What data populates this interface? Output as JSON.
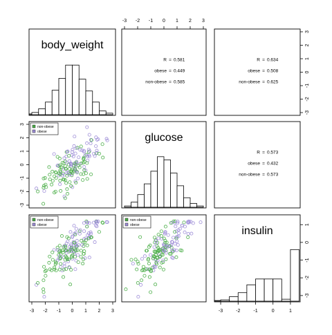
{
  "chart_data": {
    "type": "scatter",
    "variables": [
      "body_weight",
      "glucose",
      "insulin"
    ],
    "groups": [
      {
        "name": "non-obese",
        "color": "#4daf4a"
      },
      {
        "name": "obese",
        "color": "#9f8fd8"
      }
    ],
    "axis_ticks": {
      "body_weight": [
        "-3",
        "-2",
        "-1",
        "0",
        "1",
        "2",
        "3"
      ],
      "glucose": [
        "-3",
        "-2",
        "-1",
        "0",
        "1",
        "2",
        "3"
      ],
      "insulin": [
        "-3",
        "-2",
        "-1",
        "0",
        "1"
      ]
    },
    "axis_ranges": {
      "body_weight": [
        -3,
        3
      ],
      "glucose": [
        -3,
        3
      ],
      "insulin": [
        -3.2,
        1.4
      ]
    },
    "histograms": {
      "body_weight": {
        "bins": [
          -3.5,
          -3,
          -2.5,
          -2,
          -1.5,
          -1,
          -0.5,
          0,
          0.5,
          1,
          1.5,
          2,
          2.5,
          3
        ],
        "counts": [
          1,
          3,
          8,
          17,
          33,
          49,
          67,
          67,
          48,
          32,
          17,
          5,
          2
        ],
        "max": 70
      },
      "glucose": {
        "bins": [
          -3,
          -2.5,
          -2,
          -1.5,
          -1,
          -0.5,
          0,
          0.5,
          1,
          1.5,
          2,
          2.5,
          3
        ],
        "counts": [
          2,
          8,
          20,
          37,
          57,
          80,
          75,
          54,
          34,
          15,
          6,
          2
        ],
        "max": 82
      },
      "insulin": {
        "bins": [
          -3.5,
          -3,
          -2.5,
          -2,
          -1.5,
          -1,
          -0.5,
          0,
          0.5,
          1,
          1.5
        ],
        "counts": [
          1,
          2,
          7,
          13,
          25,
          34,
          34,
          34,
          3,
          79
        ],
        "max": 80
      }
    },
    "correlations": [
      {
        "vars": [
          "body_weight",
          "glucose"
        ],
        "rows": [
          [
            "R",
            "0.581"
          ],
          [
            "obese",
            "0.449"
          ],
          [
            "non-obese",
            "0.585"
          ]
        ]
      },
      {
        "vars": [
          "body_weight",
          "insulin"
        ],
        "rows": [
          [
            "R",
            "0.634"
          ],
          [
            "obese",
            "0.508"
          ],
          [
            "non-obese",
            "0.625"
          ]
        ]
      },
      {
        "vars": [
          "glucose",
          "insulin"
        ],
        "rows": [
          [
            "R",
            "0.573"
          ],
          [
            "obese",
            "0.432"
          ],
          [
            "non-obese",
            "0.573"
          ]
        ]
      }
    ],
    "legend": {
      "entries": [
        "non-obese",
        "obese"
      ],
      "placement": "top-left"
    },
    "grid": false
  }
}
